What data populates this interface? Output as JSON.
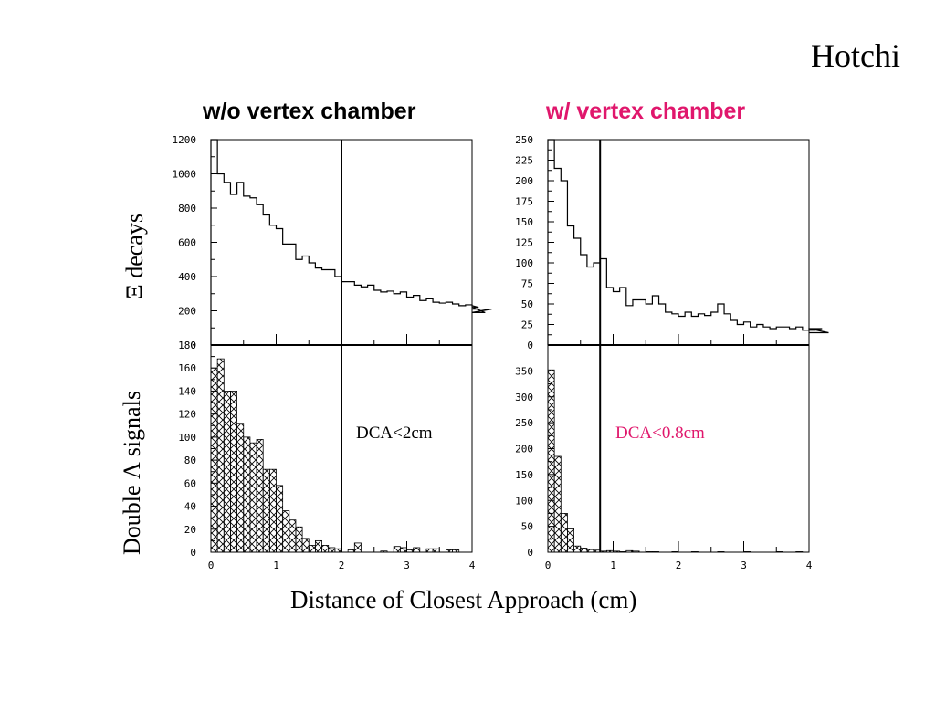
{
  "header": {
    "author": "Hotchi"
  },
  "axes_labels": {
    "y_top": "Ξ decays",
    "y_bottom": "Double Λ signals",
    "x": "Distance of Closest Approach (cm)"
  },
  "colors": {
    "accent": "#e0176c",
    "line": "#000000"
  },
  "chart_data": [
    {
      "type": "bar",
      "panel": "left-top",
      "title": "w/o vertex chamber",
      "xlim": [
        0,
        4
      ],
      "ylim": [
        0,
        1200
      ],
      "bin_width": 0.1,
      "yticks": [
        "1200",
        "1000",
        "800",
        "600",
        "400",
        "200",
        "0"
      ],
      "xticks": [],
      "cut_line_x": 2,
      "values": [
        1200,
        1000,
        950,
        880,
        950,
        870,
        860,
        820,
        760,
        700,
        680,
        590,
        590,
        500,
        520,
        480,
        450,
        440,
        440,
        400,
        370,
        370,
        350,
        340,
        350,
        320,
        310,
        315,
        300,
        310,
        280,
        290,
        260,
        270,
        250,
        245,
        250,
        240,
        230,
        235,
        230,
        220,
        190,
        210
      ]
    },
    {
      "type": "bar",
      "panel": "left-bottom",
      "xlim": [
        0,
        4
      ],
      "ylim": [
        0,
        180
      ],
      "bin_width": 0.1,
      "yticks": [
        "180",
        "160",
        "140",
        "120",
        "100",
        "80",
        "60",
        "40",
        "20",
        "0"
      ],
      "xticks": [
        "0",
        "1",
        "2",
        "3",
        "4"
      ],
      "cut_line_x": 2,
      "annotation": "DCA<2cm",
      "hatched": true,
      "values": [
        160,
        168,
        140,
        140,
        112,
        100,
        95,
        98,
        72,
        72,
        58,
        36,
        28,
        22,
        12,
        6,
        10,
        6,
        4,
        3,
        0,
        2,
        8,
        0,
        0,
        0,
        1,
        0,
        5,
        4,
        2,
        4,
        0,
        3,
        3,
        0,
        2,
        2,
        0,
        0,
        3,
        2,
        0,
        0
      ]
    },
    {
      "type": "bar",
      "panel": "right-top",
      "title": "w/ vertex chamber",
      "xlim": [
        0,
        4
      ],
      "ylim": [
        0,
        250
      ],
      "bin_width": 0.1,
      "yticks": [
        "250",
        "225",
        "200",
        "175",
        "150",
        "125",
        "100",
        "75",
        "50",
        "25",
        "0"
      ],
      "xticks": [],
      "cut_line_x": 0.8,
      "values": [
        250,
        215,
        200,
        145,
        130,
        110,
        95,
        100,
        105,
        70,
        65,
        70,
        48,
        55,
        55,
        50,
        60,
        50,
        40,
        38,
        35,
        40,
        35,
        38,
        36,
        40,
        50,
        38,
        30,
        25,
        28,
        22,
        25,
        22,
        20,
        22,
        22,
        20,
        22,
        18,
        20,
        18,
        20,
        15
      ]
    },
    {
      "type": "bar",
      "panel": "right-bottom",
      "xlim": [
        0,
        4
      ],
      "ylim": [
        0,
        400
      ],
      "bin_width": 0.1,
      "yticks": [
        "350",
        "300",
        "250",
        "200",
        "150",
        "100",
        "50",
        "0"
      ],
      "xticks": [
        "0",
        "1",
        "2",
        "3",
        "4"
      ],
      "cut_line_x": 0.8,
      "annotation": "DCA<0.8cm",
      "hatched": true,
      "values": [
        352,
        185,
        75,
        45,
        12,
        8,
        5,
        4,
        2,
        3,
        2,
        1,
        3,
        2,
        0,
        1,
        1,
        0,
        0,
        1,
        0,
        0,
        1,
        0,
        0,
        0,
        1,
        0,
        0,
        0,
        1,
        0,
        0,
        0,
        0,
        1,
        0,
        0,
        1,
        0,
        0,
        0,
        1,
        0
      ]
    }
  ]
}
